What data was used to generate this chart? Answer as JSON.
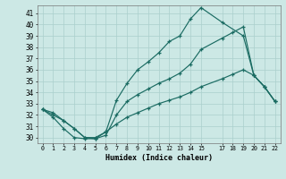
{
  "xlabel": "Humidex (Indice chaleur)",
  "background_color": "#cce8e5",
  "grid_color": "#aacfcc",
  "line_color": "#1a6b62",
  "xlim": [
    -0.5,
    22.5
  ],
  "ylim": [
    29.5,
    41.7
  ],
  "xticks": [
    0,
    1,
    2,
    3,
    4,
    5,
    6,
    7,
    8,
    9,
    10,
    11,
    12,
    13,
    14,
    15,
    17,
    18,
    19,
    20,
    21,
    22
  ],
  "yticks": [
    30,
    31,
    32,
    33,
    34,
    35,
    36,
    37,
    38,
    39,
    40,
    41
  ],
  "line1_x": [
    0,
    1,
    2,
    3,
    4,
    5,
    6,
    7,
    8,
    9,
    10,
    11,
    12,
    13,
    14,
    15,
    17,
    19,
    20,
    21,
    22
  ],
  "line1_y": [
    32.5,
    31.8,
    30.8,
    30.0,
    29.9,
    29.9,
    30.5,
    33.3,
    34.8,
    36.0,
    36.7,
    37.5,
    38.5,
    39.0,
    40.5,
    41.5,
    40.2,
    39.0,
    35.5,
    34.5,
    33.2
  ],
  "line2_x": [
    0,
    1,
    2,
    3,
    4,
    5,
    6,
    7,
    8,
    9,
    10,
    11,
    12,
    13,
    14,
    15,
    17,
    18,
    19,
    20,
    21,
    22
  ],
  "line2_y": [
    32.5,
    32.2,
    31.5,
    30.8,
    30.0,
    29.9,
    30.2,
    32.0,
    33.2,
    33.8,
    34.3,
    34.8,
    35.2,
    35.7,
    36.5,
    37.8,
    38.8,
    39.3,
    39.8,
    35.5,
    34.5,
    33.2
  ],
  "line3_x": [
    0,
    1,
    2,
    3,
    4,
    5,
    6,
    7,
    8,
    9,
    10,
    11,
    12,
    13,
    14,
    15,
    17,
    18,
    19,
    20,
    21,
    22
  ],
  "line3_y": [
    32.5,
    32.0,
    31.5,
    30.8,
    30.0,
    30.0,
    30.5,
    31.2,
    31.8,
    32.2,
    32.6,
    33.0,
    33.3,
    33.6,
    34.0,
    34.5,
    35.2,
    35.6,
    36.0,
    35.5,
    34.5,
    33.2
  ]
}
